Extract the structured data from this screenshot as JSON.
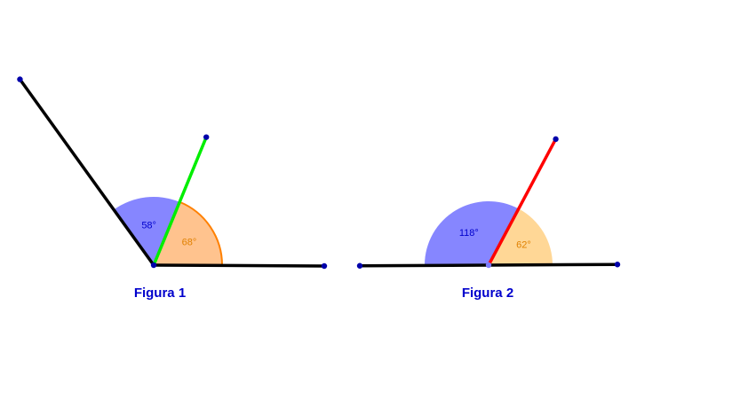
{
  "figures": [
    {
      "caption": "Figura 1",
      "angle_a": {
        "label": "58°",
        "degrees": 58,
        "fill": "#8080ff",
        "text_color": "#0000cc"
      },
      "angle_b": {
        "label": "68°",
        "degrees": 68,
        "fill": "#ffc088",
        "stroke": "#ff8000",
        "text_color": "#e08000"
      },
      "divider_ray_color": "#00ee00",
      "side_color": "#000000",
      "point_color": "#0000aa"
    },
    {
      "caption": "Figura 2",
      "angle_a": {
        "label": "118°",
        "degrees": 118,
        "fill": "#8080ff",
        "text_color": "#0000cc"
      },
      "angle_b": {
        "label": "62°",
        "degrees": 62,
        "fill": "#ffd590",
        "text_color": "#e08000"
      },
      "divider_ray_color": "#ff0000",
      "side_color": "#000000",
      "point_color": "#0000aa"
    }
  ],
  "caption_color": "#0000cc"
}
